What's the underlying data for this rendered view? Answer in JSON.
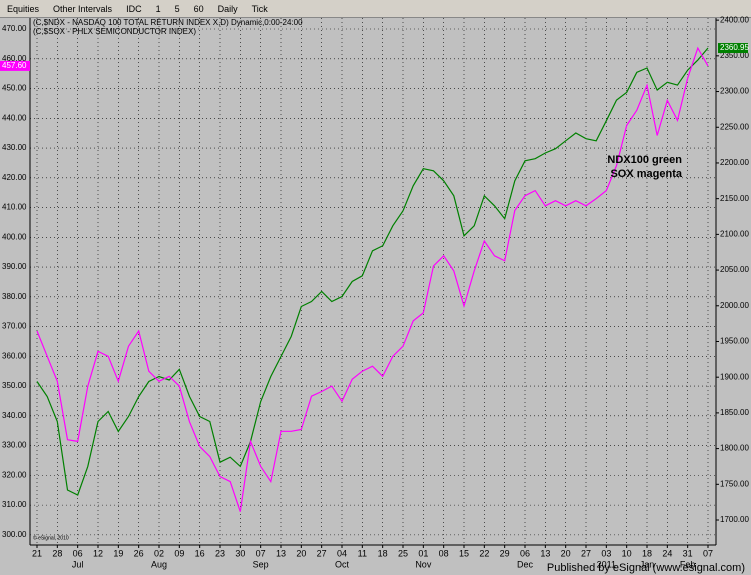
{
  "toolbar": [
    "Equities",
    "Other Intervals",
    "IDC",
    "1",
    "5",
    "60",
    "Daily",
    "Tick"
  ],
  "chart_data": {
    "type": "line",
    "categories": [
      "21",
      null,
      "28",
      null,
      "06",
      null,
      "12",
      null,
      "19",
      null,
      "26",
      null,
      "02",
      null,
      "09",
      null,
      "16",
      null,
      "23",
      null,
      "30",
      null,
      "07",
      null,
      "13",
      null,
      "20",
      null,
      "27",
      null,
      "04",
      null,
      "11",
      null,
      "18",
      null,
      "25",
      null,
      "01",
      null,
      "08",
      null,
      "15",
      null,
      "22",
      null,
      "29",
      null,
      "06",
      null,
      "13",
      null,
      "20",
      null,
      "27",
      null,
      "03",
      null,
      "10",
      null,
      "18",
      null,
      "24",
      null,
      "31",
      null,
      "07"
    ],
    "months": [
      null,
      null,
      null,
      null,
      "Jul",
      null,
      null,
      null,
      null,
      null,
      null,
      null,
      "Aug",
      null,
      null,
      null,
      null,
      null,
      null,
      null,
      null,
      null,
      "Sep",
      null,
      null,
      null,
      null,
      null,
      null,
      null,
      "Oct",
      null,
      null,
      null,
      null,
      null,
      null,
      null,
      "Nov",
      null,
      null,
      null,
      null,
      null,
      null,
      null,
      null,
      null,
      "Dec",
      null,
      null,
      null,
      null,
      null,
      null,
      null,
      "2011",
      null,
      null,
      null,
      "Jan",
      null,
      null,
      null,
      "Feb",
      null,
      null
    ],
    "series": [
      {
        "name": "(C,$NDX - NASDAQ 100 TOTAL RETURN INDEX X,D) Dynamic,0:00-24:00",
        "color": "#008000",
        "axis": "y2",
        "values": [
          1894,
          1873,
          1838,
          1742,
          1735,
          1775,
          1838,
          1852,
          1824,
          1845,
          1873,
          1894,
          1901,
          1896,
          1911,
          1873,
          1845,
          1838,
          1781,
          1788,
          1775,
          1810,
          1866,
          1901,
          1929,
          1957,
          1999,
          2006,
          2020,
          2006,
          2013,
          2034,
          2042,
          2077,
          2084,
          2112,
          2133,
          2168,
          2192,
          2189,
          2175,
          2154,
          2098,
          2112,
          2154,
          2140,
          2122,
          2175,
          2203,
          2206,
          2214,
          2220,
          2231,
          2242,
          2234,
          2231,
          2259,
          2288,
          2299,
          2327,
          2333,
          2302,
          2313,
          2309,
          2330,
          2344,
          2360.95
        ],
        "value_labels": [
          null,
          null,
          null,
          null,
          null,
          null,
          null,
          null,
          null,
          null,
          null,
          null,
          null,
          null,
          null,
          null,
          null,
          null,
          null,
          null,
          null,
          null,
          null,
          null,
          null,
          null,
          null,
          null,
          null,
          null,
          null,
          null,
          null,
          null,
          null,
          null,
          null,
          null,
          null,
          null,
          null,
          null,
          null,
          null,
          null,
          null,
          null,
          null,
          null,
          null,
          null,
          null,
          null,
          null,
          null,
          null,
          null,
          null,
          null,
          null,
          null,
          null,
          null,
          null,
          null,
          null,
          "2360.95"
        ]
      },
      {
        "name": "(C,$SOX - PHLX SEMICONDUCTOR INDEX)",
        "color": "#ff00ff",
        "values": [
          368.5,
          360,
          351.6,
          332,
          331.4,
          350,
          361.7,
          360,
          351.6,
          363.4,
          368.5,
          355,
          351.6,
          353.3,
          350,
          338,
          329.7,
          326.3,
          319.6,
          317.9,
          307.8,
          331.4,
          323,
          317.9,
          334.8,
          334.8,
          335.4,
          346.6,
          348.2,
          350,
          344.9,
          352.3,
          355,
          356.7,
          353.3,
          360,
          363.4,
          371.9,
          374.6,
          390.4,
          393.8,
          388.7,
          376.9,
          388.7,
          398.8,
          393.8,
          392.1,
          409,
          414,
          415.7,
          410.6,
          412.3,
          410.6,
          412.3,
          410.6,
          413,
          415.7,
          424.1,
          437.6,
          442.7,
          451.1,
          434.2,
          446,
          439.3,
          453.5,
          463.6,
          457.6
        ],
        "value_labels": [
          null,
          null,
          null,
          null,
          null,
          null,
          null,
          null,
          null,
          null,
          null,
          null,
          null,
          null,
          null,
          null,
          null,
          null,
          null,
          null,
          null,
          null,
          null,
          null,
          null,
          null,
          null,
          null,
          null,
          null,
          null,
          null,
          null,
          null,
          null,
          null,
          null,
          null,
          null,
          null,
          null,
          null,
          null,
          null,
          null,
          null,
          null,
          null,
          null,
          null,
          null,
          null,
          null,
          null,
          null,
          null,
          null,
          null,
          null,
          null,
          null,
          null,
          null,
          null,
          null,
          null,
          "457.60"
        ]
      }
    ],
    "ylim": [
      296.6,
      473.7
    ],
    "yticks": [
      {
        "value": 300,
        "label": "300.00"
      },
      {
        "value": 310,
        "label": "310.00"
      },
      {
        "value": 320,
        "label": "320.00"
      },
      {
        "value": 330,
        "label": "330.00"
      },
      {
        "value": 340,
        "label": "340.00"
      },
      {
        "value": 350,
        "label": "350.00"
      },
      {
        "value": 360,
        "label": "360.00"
      },
      {
        "value": 370,
        "label": "370.00"
      },
      {
        "value": 380,
        "label": "380.00"
      },
      {
        "value": 390,
        "label": "390.00"
      },
      {
        "value": 400,
        "label": "400.00"
      },
      {
        "value": 410,
        "label": "410.00"
      },
      {
        "value": 420,
        "label": "420.00"
      },
      {
        "value": 430,
        "label": "430.00"
      },
      {
        "value": 440,
        "label": "440.00"
      },
      {
        "value": 450,
        "label": "450.00"
      },
      {
        "value": 460,
        "label": "460.00"
      },
      {
        "value": 470,
        "label": "470.00"
      }
    ],
    "y2lim": [
      1665,
      2403
    ],
    "y2ticks": [
      {
        "value": 1700,
        "label": "1700.00"
      },
      {
        "value": 1750,
        "label": "1750.00"
      },
      {
        "value": 1800,
        "label": "1800.00"
      },
      {
        "value": 1850,
        "label": "1850.00"
      },
      {
        "value": 1900,
        "label": "1900.00"
      },
      {
        "value": 1950,
        "label": "1950.00"
      },
      {
        "value": 2000,
        "label": "2000.00"
      },
      {
        "value": 2050,
        "label": "2050.00"
      },
      {
        "value": 2100,
        "label": "2100.00"
      },
      {
        "value": 2150,
        "label": "2150.00"
      },
      {
        "value": 2200,
        "label": "2200.00"
      },
      {
        "value": 2250,
        "label": "2250.00"
      },
      {
        "value": 2300,
        "label": "2300.00"
      },
      {
        "value": 2350,
        "label": "2350.00"
      },
      {
        "value": 2400,
        "label": "2400.00"
      }
    ],
    "grid": true,
    "annotations": [
      "NDX100 green",
      "SOX magenta"
    ],
    "watermark": "© eSignal, 2010",
    "footer": "Published by eSignal (www.esignal.com)"
  }
}
